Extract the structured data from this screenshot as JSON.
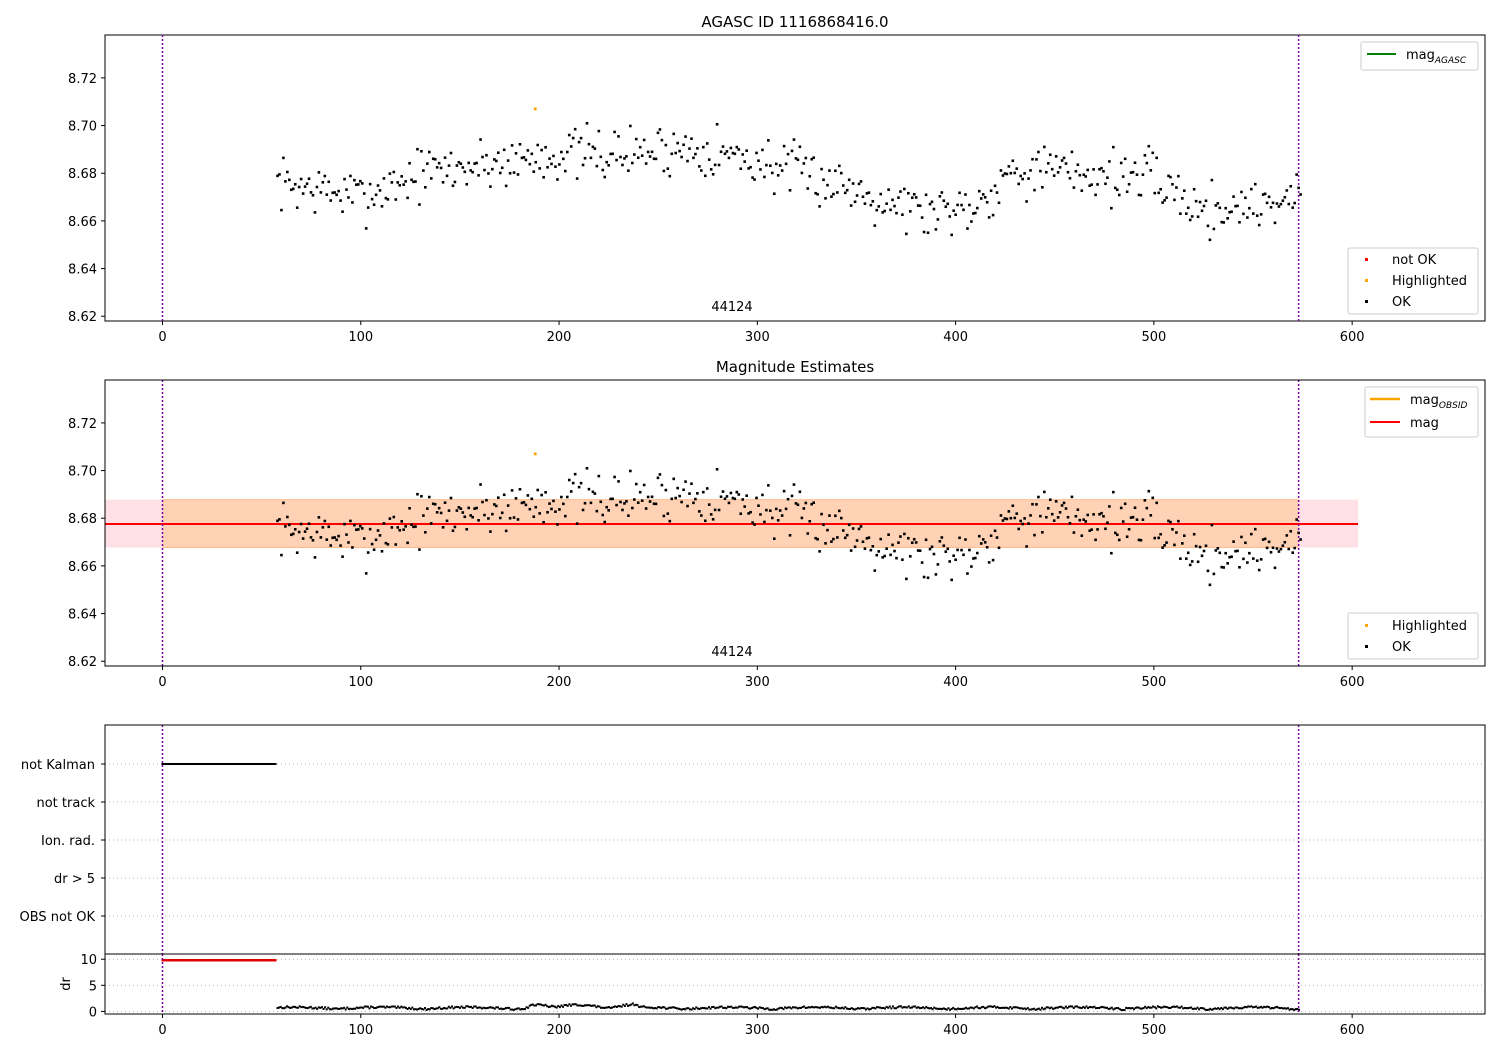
{
  "chart_data": [
    {
      "type": "scatter",
      "title": "AGASC ID 1116868416.0",
      "annotation": "44124",
      "xlim": [
        -29,
        667
      ],
      "ylim": [
        8.618,
        8.738
      ],
      "xticks": [
        "0",
        "100",
        "200",
        "300",
        "400",
        "500",
        "600"
      ],
      "yticks": [
        "8.62",
        "8.64",
        "8.66",
        "8.68",
        "8.70",
        "8.72"
      ],
      "vlines": [
        0,
        573
      ],
      "legend_top": {
        "label": "mag",
        "sub": "AGASC",
        "color": "#008000"
      },
      "legend_bottom": [
        {
          "label": "not OK",
          "color": "#ff0000"
        },
        {
          "label": "Highlighted",
          "color": "#ffa500"
        },
        {
          "label": "OK",
          "color": "#000000"
        }
      ],
      "highlighted": [
        {
          "x": 188,
          "y": 8.707
        }
      ],
      "series_ok": {
        "x_start": 58,
        "x_end": 574,
        "n": 520,
        "seed": 7,
        "key": [
          [
            58,
            8.676
          ],
          [
            100,
            8.67
          ],
          [
            130,
            8.68
          ],
          [
            165,
            8.684
          ],
          [
            200,
            8.688
          ],
          [
            230,
            8.688
          ],
          [
            270,
            8.691
          ],
          [
            300,
            8.685
          ],
          [
            340,
            8.676
          ],
          [
            385,
            8.664
          ],
          [
            410,
            8.667
          ],
          [
            430,
            8.682
          ],
          [
            460,
            8.68
          ],
          [
            500,
            8.678
          ],
          [
            525,
            8.664
          ],
          [
            574,
            8.67
          ]
        ]
      },
      "legend_placement": "top-right and lower-right"
    },
    {
      "type": "scatter",
      "title": "Magnitude Estimates",
      "annotation": "44124",
      "xlim": [
        -29,
        667
      ],
      "ylim": [
        8.618,
        8.738
      ],
      "xticks": [
        "0",
        "100",
        "200",
        "300",
        "400",
        "500",
        "600"
      ],
      "yticks": [
        "8.62",
        "8.64",
        "8.66",
        "8.68",
        "8.70",
        "8.72"
      ],
      "vlines": [
        0,
        573
      ],
      "mag": 8.6776,
      "mag_band": [
        8.6677,
        8.6878
      ],
      "band_x": [
        -29,
        603
      ],
      "obsid_band_x": [
        0,
        573
      ],
      "legend_top": [
        {
          "label": "mag",
          "sub": "OBSID",
          "color": "#ffa500"
        },
        {
          "label": "mag",
          "sub": "",
          "color": "#ff0000"
        }
      ],
      "legend_bottom": [
        {
          "label": "Highlighted",
          "color": "#ffa500"
        },
        {
          "label": "OK",
          "color": "#000000"
        }
      ],
      "highlighted": [
        {
          "x": 188,
          "y": 8.707
        }
      ],
      "series_ok": "same as panel 1"
    },
    {
      "type": "scatter",
      "ytick_labels": [
        "not Kalman",
        "not track",
        "Ion. rad.",
        "dr > 5",
        "OBS not OK"
      ],
      "flags": {
        "not Kalman": [
          0,
          57
        ]
      },
      "xlim": [
        -29,
        667
      ]
    },
    {
      "type": "scatter",
      "ylabel": "dr",
      "yticks": [
        "0",
        "5",
        "10"
      ],
      "ylim": [
        -0.5,
        11
      ],
      "xlim": [
        -29,
        667
      ],
      "xticks": [
        "0",
        "100",
        "200",
        "300",
        "400",
        "500",
        "600"
      ],
      "red_segment": {
        "x": [
          0,
          57
        ],
        "y": 9.8
      },
      "black_segment": {
        "x_start": 58,
        "x_end": 574,
        "typical": 0.8,
        "max": 2.0
      }
    }
  ]
}
